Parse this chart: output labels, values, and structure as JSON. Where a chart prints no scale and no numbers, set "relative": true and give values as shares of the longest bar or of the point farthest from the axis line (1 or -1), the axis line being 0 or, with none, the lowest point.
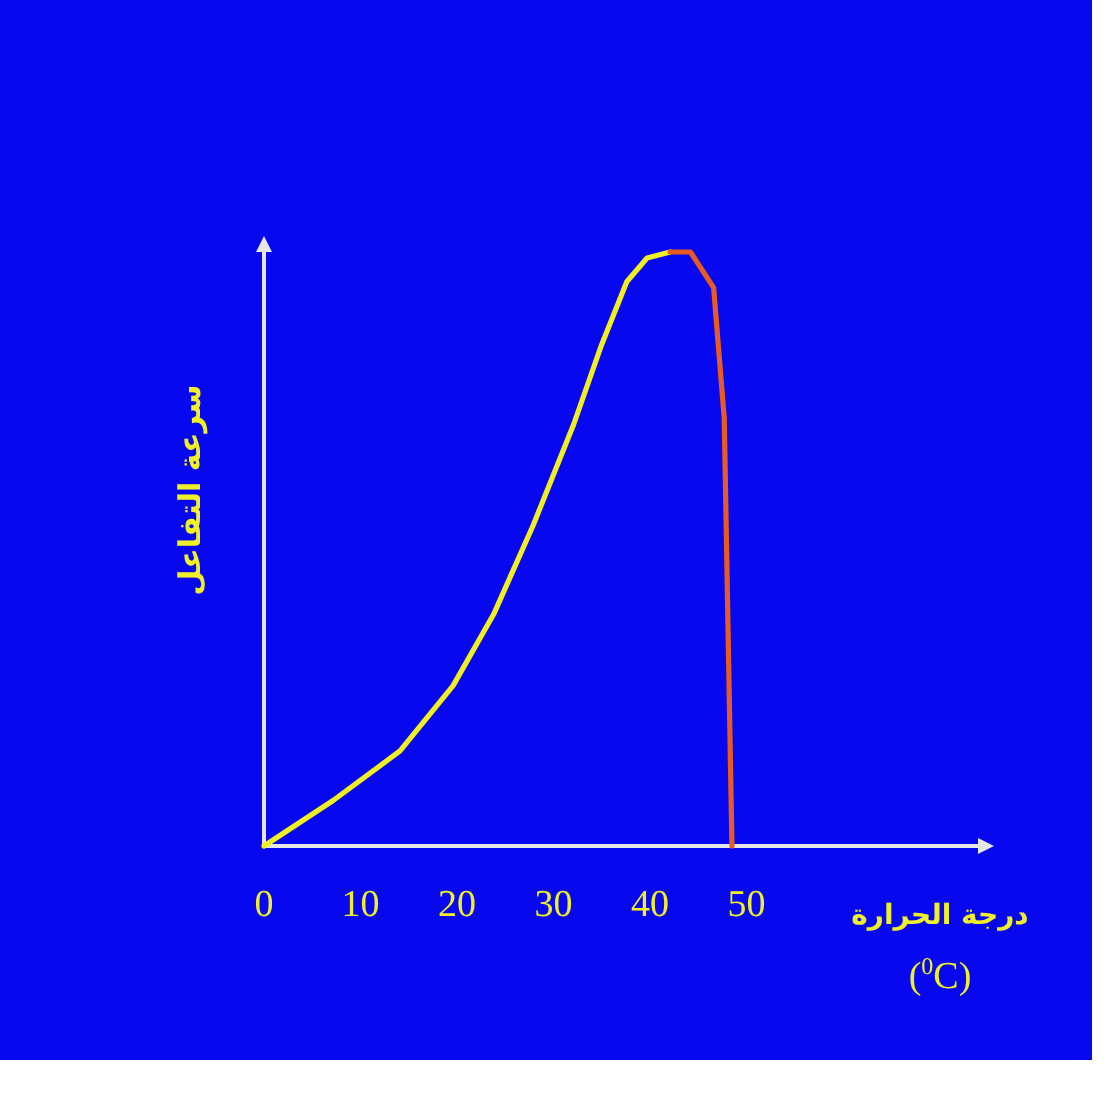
{
  "chart_data": {
    "type": "line",
    "relative": true,
    "xlabel": "درجة الحرارة",
    "ylabel": "سرعة التفاعل",
    "annotations": [
      "($^{0}$C)"
    ],
    "xlim": [
      0,
      74
    ],
    "xticks": [
      0,
      10,
      20,
      30,
      40,
      50
    ],
    "tick_labels": "x",
    "line_style": "solid",
    "series": [
      {
        "color": "#f0f020",
        "x": [
          0,
          7.2,
          14.1,
          19.6,
          23.8,
          27.9,
          32.1,
          34.9,
          37.6,
          39.7,
          42.1
        ],
        "values": [
          0,
          0.077,
          0.16,
          0.27,
          0.39,
          0.54,
          0.71,
          0.84,
          0.95,
          0.99,
          1.0
        ]
      },
      {
        "color": "#e85a20",
        "x": [
          42.1,
          44.2,
          46.6,
          47.7,
          48.5
        ],
        "values": [
          1.0,
          1.0,
          0.94,
          0.72,
          0
        ]
      }
    ]
  }
}
